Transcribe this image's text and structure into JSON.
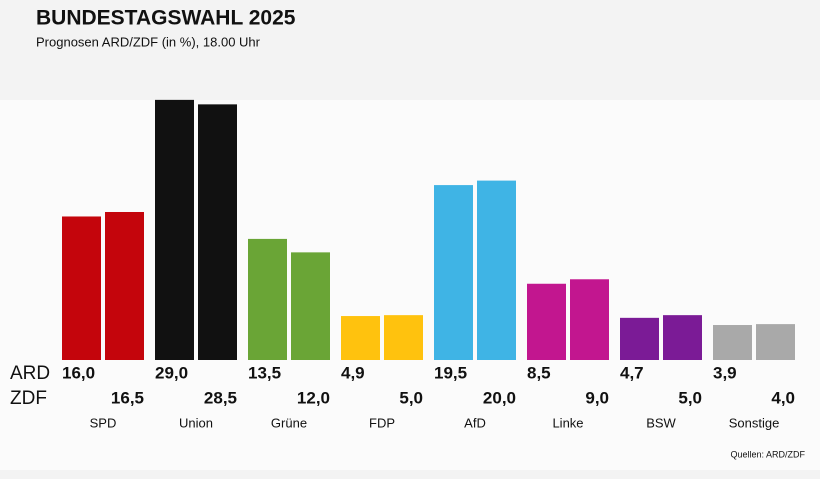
{
  "chart_data": {
    "type": "bar",
    "title": "BUNDESTAGSWAHL 2025",
    "subtitle": "Prognosen ARD/ZDF (in %), 18.00 Uhr",
    "categories": [
      "SPD",
      "Union",
      "Grüne",
      "FDP",
      "AfD",
      "Linke",
      "BSW",
      "Sonstige"
    ],
    "colors": [
      "#c4050c",
      "#111111",
      "#6aa536",
      "#ffc20e",
      "#3fb4e5",
      "#c2168f",
      "#7b1b96",
      "#a9a9a9"
    ],
    "series": [
      {
        "name": "ARD",
        "values": [
          16.0,
          29.0,
          13.5,
          4.9,
          19.5,
          8.5,
          4.7,
          3.9
        ],
        "value_labels": [
          "16,0",
          "29,0",
          "13,5",
          "4,9",
          "19,5",
          "8,5",
          "4,7",
          "3,9"
        ]
      },
      {
        "name": "ZDF",
        "values": [
          16.5,
          28.5,
          12.0,
          5.0,
          20.0,
          9.0,
          5.0,
          4.0
        ],
        "value_labels": [
          "16,5",
          "28,5",
          "12,0",
          "5,0",
          "20,0",
          "9,0",
          "5,0",
          "4,0"
        ]
      }
    ],
    "source": "Quellen: ARD/ZDF"
  }
}
